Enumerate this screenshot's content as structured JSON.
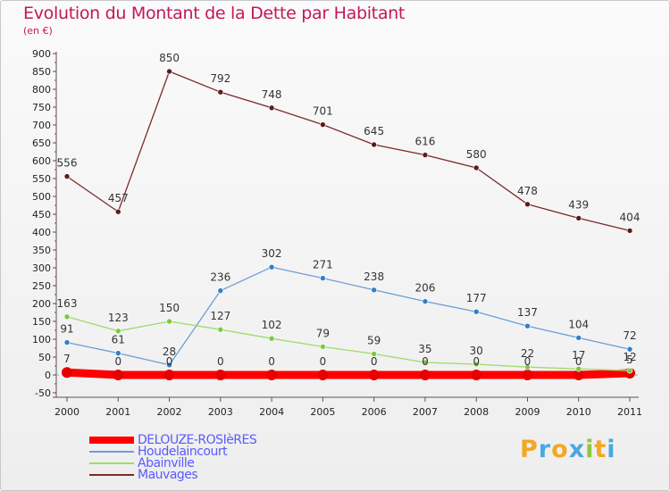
{
  "title": "Evolution du Montant de la Dette par Habitant",
  "subtitle": "(en €)",
  "logo": {
    "text": "Proxiti",
    "colors": [
      "#f5a623",
      "#4aa8e0",
      "#f5a623",
      "#4aa8e0",
      "#8ac63f",
      "#f5a623",
      "#4aa8e0"
    ]
  },
  "chart_data": {
    "type": "line",
    "title": "Evolution du Montant de la Dette par Habitant",
    "subtitle": "(en €)",
    "x": [
      "2000",
      "2001",
      "2002",
      "2003",
      "2004",
      "2005",
      "2006",
      "2007",
      "2008",
      "2009",
      "2010",
      "2011"
    ],
    "ylim": [
      -50,
      900
    ],
    "yticks": [
      -50,
      0,
      50,
      100,
      150,
      200,
      250,
      300,
      350,
      400,
      450,
      500,
      550,
      600,
      650,
      700,
      750,
      800,
      850,
      900
    ],
    "grid": false,
    "legend_position": "bottom-left",
    "series": [
      {
        "name": "DELOUZE-ROSIèRES",
        "color": "#ff0000",
        "width": 9,
        "point": "#e60000",
        "values": [
          7,
          0,
          0,
          0,
          0,
          0,
          0,
          0,
          0,
          0,
          0,
          5
        ],
        "labels": [
          "7",
          "0",
          "0",
          "0",
          "0",
          "0",
          "0",
          "0",
          "0",
          "0",
          "0",
          "5"
        ]
      },
      {
        "name": "Houdelaincourt",
        "color": "#6c9fd4",
        "width": 1.3,
        "point": "#2f7fc8",
        "values": [
          91,
          61,
          28,
          236,
          302,
          271,
          238,
          206,
          177,
          137,
          104,
          72
        ],
        "labels": [
          "91",
          "61",
          "28",
          "236",
          "302",
          "271",
          "238",
          "206",
          "177",
          "137",
          "104",
          "72"
        ]
      },
      {
        "name": "Abainville",
        "color": "#9ddc6a",
        "width": 1.3,
        "point": "#7cc83e",
        "values": [
          163,
          123,
          150,
          127,
          102,
          79,
          59,
          35,
          30,
          22,
          17,
          12
        ],
        "labels": [
          "163",
          "123",
          "150",
          "127",
          "102",
          "79",
          "59",
          "35",
          "30",
          "22",
          "17",
          "12"
        ]
      },
      {
        "name": "Mauvages",
        "color": "#7a2a2a",
        "width": 1.3,
        "point": "#5c1a1a",
        "values": [
          556,
          457,
          850,
          792,
          748,
          701,
          645,
          616,
          580,
          478,
          439,
          404
        ],
        "labels": [
          "556",
          "457",
          "850",
          "792",
          "748",
          "701",
          "645",
          "616",
          "580",
          "478",
          "439",
          "404"
        ]
      }
    ]
  }
}
